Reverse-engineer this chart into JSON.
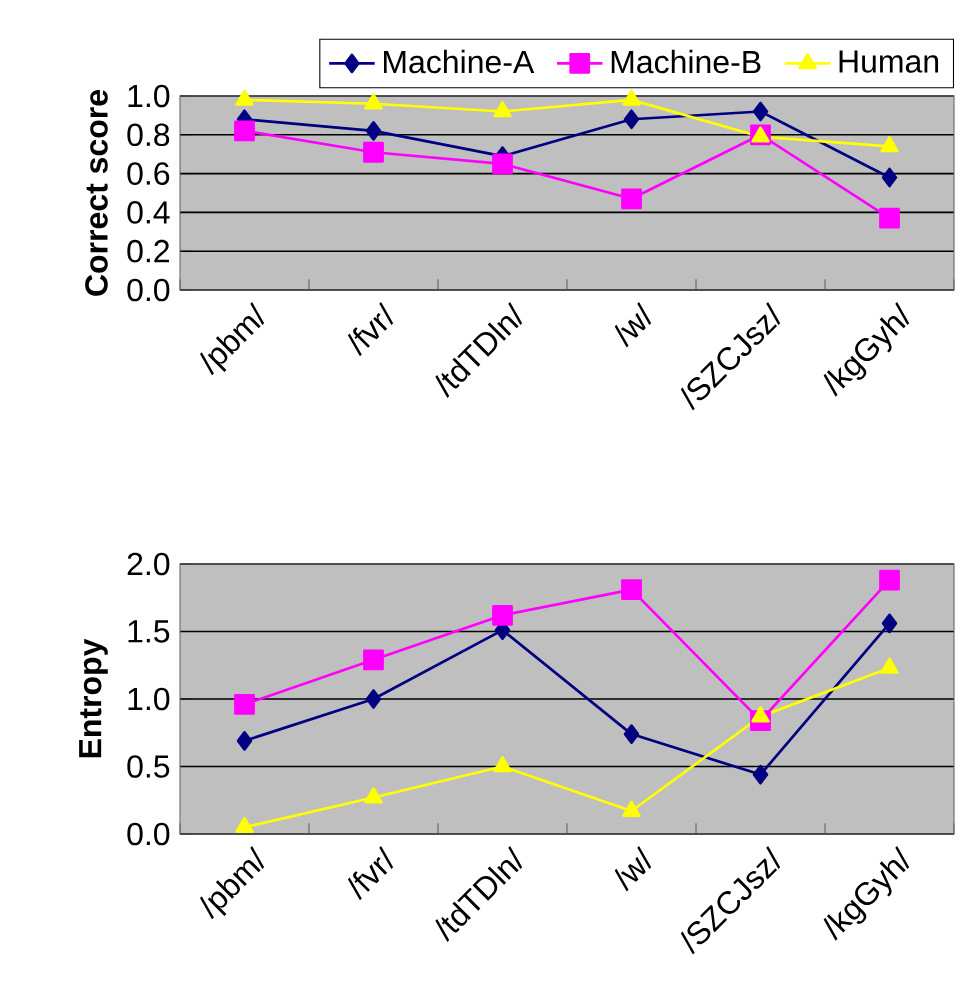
{
  "chart_data": [
    {
      "type": "line",
      "ylabel": "Correct score",
      "categories": [
        "/pbm/",
        "/fvr/",
        "/tdTDln/",
        "/w/",
        "/SZCJsz/",
        "/kgGyh/"
      ],
      "series": [
        {
          "name": "Machine-A",
          "color": "#000080",
          "marker": "diamond",
          "values": [
            0.88,
            0.82,
            0.69,
            0.88,
            0.92,
            0.58
          ]
        },
        {
          "name": "Machine-B",
          "color": "#ff00ff",
          "marker": "square",
          "values": [
            0.82,
            0.71,
            0.65,
            0.47,
            0.8,
            0.37
          ]
        },
        {
          "name": "Human",
          "color": "#ffff00",
          "marker": "triangle",
          "values": [
            0.98,
            0.96,
            0.92,
            0.98,
            0.79,
            0.74
          ]
        }
      ],
      "ylim": [
        0,
        1
      ],
      "yticks": [
        {
          "value": 0,
          "label": "0.0"
        },
        {
          "value": 0.2,
          "label": "0.2"
        },
        {
          "value": 0.4,
          "label": "0.4"
        },
        {
          "value": 0.6,
          "label": "0.6"
        },
        {
          "value": 0.8,
          "label": "0.8"
        },
        {
          "value": 1,
          "label": "1.0"
        }
      ],
      "grid": "y",
      "legend": "top"
    },
    {
      "type": "line",
      "ylabel": "Entropy",
      "categories": [
        "/pbm/",
        "/fvr/",
        "/tdTDln/",
        "/w/",
        "/SZCJsz/",
        "/kgGyh/"
      ],
      "series": [
        {
          "color": "#000080",
          "marker": "diamond",
          "values": [
            0.69,
            1.0,
            1.51,
            0.74,
            0.44,
            1.56
          ]
        },
        {
          "color": "#ff00ff",
          "marker": "square",
          "values": [
            0.96,
            1.29,
            1.62,
            1.81,
            0.84,
            1.88
          ]
        },
        {
          "color": "#ffff00",
          "marker": "triangle",
          "values": [
            0.05,
            0.27,
            0.5,
            0.17,
            0.87,
            1.23
          ]
        }
      ],
      "ylim": [
        0,
        2
      ],
      "yticks": [
        {
          "value": 0,
          "label": "0.0"
        },
        {
          "value": 0.5,
          "label": "0.5"
        },
        {
          "value": 1,
          "label": "1.0"
        },
        {
          "value": 1.5,
          "label": "1.5"
        },
        {
          "value": 2,
          "label": "2.0"
        }
      ],
      "grid": "y"
    }
  ]
}
